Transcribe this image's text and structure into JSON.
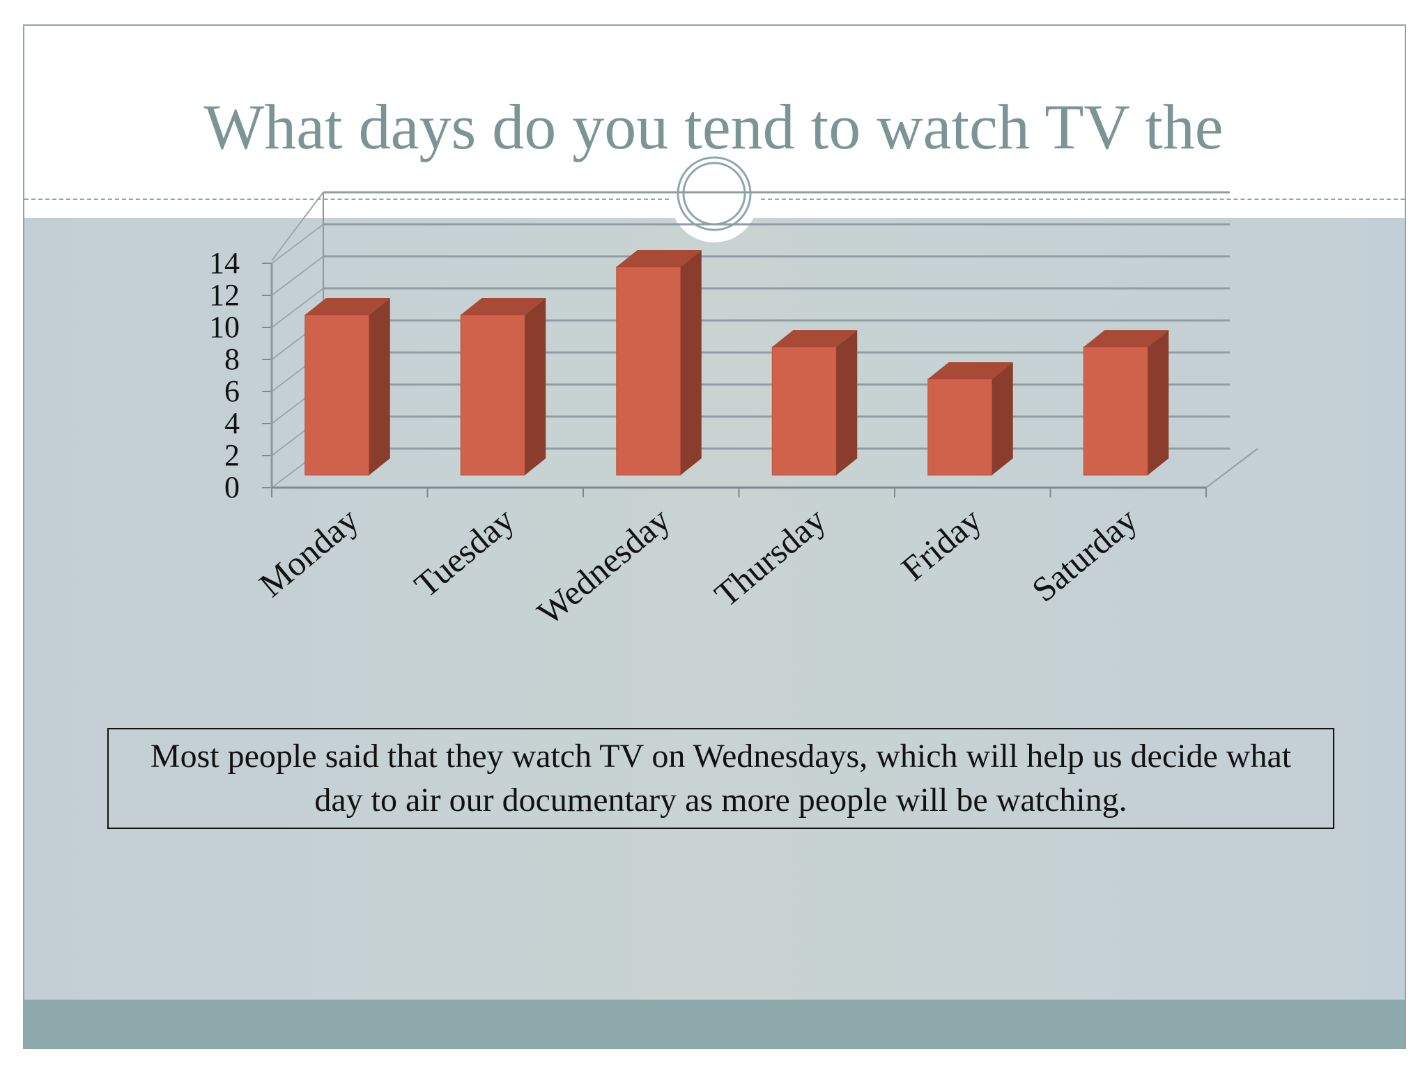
{
  "slide": {
    "title": "What days do you tend to watch TV the",
    "note": "Most people said that they watch TV on Wednesdays, which will help us decide what day to air our documentary as more people will be watching.",
    "colors": {
      "title": "#7b9596",
      "accent_band": "#8ea9ab",
      "background": "#c5d0d4",
      "bar_front": "#d0614a",
      "bar_side": "#8a3d2c",
      "bar_top": "#a84a35"
    }
  },
  "chart_data": {
    "type": "bar",
    "categories": [
      "Monday",
      "Tuesday",
      "Wednesday",
      "Thursday",
      "Friday",
      "Saturday"
    ],
    "values": [
      10,
      10,
      13,
      8,
      6,
      8
    ],
    "yticks": [
      "0",
      "2",
      "4",
      "6",
      "8",
      "10",
      "12",
      "14"
    ],
    "ylim": [
      0,
      14
    ],
    "grid": true,
    "three_d": true,
    "title": "",
    "xlabel": "",
    "ylabel": ""
  }
}
